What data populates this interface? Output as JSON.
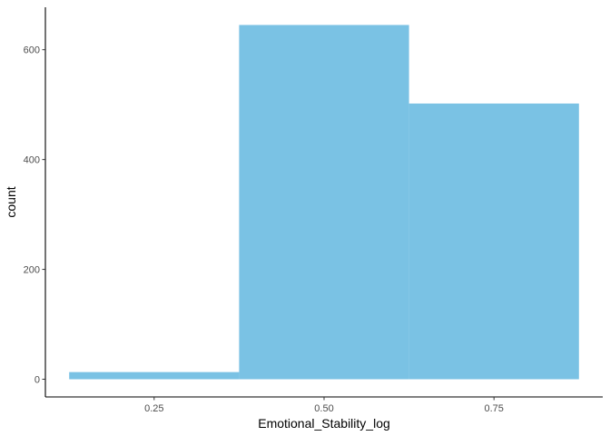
{
  "chart_data": {
    "type": "bar",
    "subtype": "histogram",
    "xlabel": "Emotional_Stability_log",
    "ylabel": "count",
    "bins": [
      {
        "x_start": 0.125,
        "x_end": 0.375,
        "count": 13
      },
      {
        "x_start": 0.375,
        "x_end": 0.625,
        "count": 645
      },
      {
        "x_start": 0.625,
        "x_end": 0.875,
        "count": 502
      }
    ],
    "x_ticks": [
      0.25,
      0.5,
      0.75
    ],
    "x_tick_labels": [
      "0.25",
      "0.50",
      "0.75"
    ],
    "y_ticks": [
      0,
      200,
      400,
      600
    ],
    "y_tick_labels": [
      "0",
      "200",
      "400",
      "600"
    ],
    "xlim": [
      0.09,
      0.91
    ],
    "ylim": [
      -32.25,
      677.25
    ],
    "grid": false,
    "legend": "none",
    "colors": {
      "bar_fill": "#7AC2E4",
      "axis_line": "#000000",
      "tick_text": "#4d4d4d",
      "title_text": "#000000"
    }
  }
}
